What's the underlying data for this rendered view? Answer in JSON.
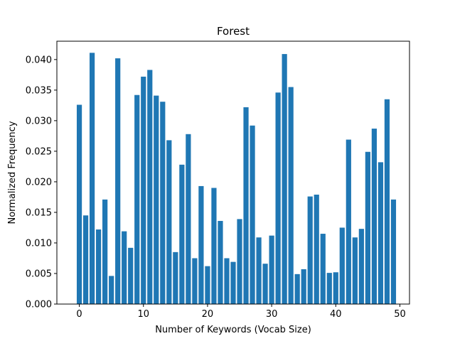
{
  "chart_data": {
    "type": "bar",
    "title": "Forest",
    "xlabel": "Number of Keywords (Vocab Size)",
    "ylabel": "Normalized Frequency",
    "xlim": [
      -3.5,
      51.5
    ],
    "ylim": [
      0,
      0.043
    ],
    "xticks": [
      0,
      10,
      20,
      30,
      40,
      50
    ],
    "yticks": [
      0.0,
      0.005,
      0.01,
      0.015,
      0.02,
      0.025,
      0.03,
      0.035,
      0.04
    ],
    "grid": false,
    "bar_color": "#1f77b4",
    "x": [
      0,
      1,
      2,
      3,
      4,
      5,
      6,
      7,
      8,
      9,
      10,
      11,
      12,
      13,
      14,
      15,
      16,
      17,
      18,
      19,
      20,
      21,
      22,
      23,
      24,
      25,
      26,
      27,
      28,
      29,
      30,
      31,
      32,
      33,
      34,
      35,
      36,
      37,
      38,
      39,
      40,
      41,
      42,
      43,
      44,
      45,
      46,
      47,
      48,
      49
    ],
    "values": [
      0.0326,
      0.0145,
      0.0411,
      0.0122,
      0.0171,
      0.0046,
      0.0402,
      0.0119,
      0.0092,
      0.0342,
      0.0372,
      0.0383,
      0.0341,
      0.0331,
      0.0268,
      0.0085,
      0.0228,
      0.0278,
      0.0075,
      0.0193,
      0.0062,
      0.019,
      0.0136,
      0.0075,
      0.0069,
      0.0139,
      0.0322,
      0.0292,
      0.0109,
      0.0066,
      0.0112,
      0.0346,
      0.0409,
      0.0355,
      0.0049,
      0.0057,
      0.0176,
      0.0179,
      0.0115,
      0.0051,
      0.0052,
      0.0125,
      0.0269,
      0.0109,
      0.0123,
      0.0249,
      0.0287,
      0.0232,
      0.0335,
      0.0171
    ]
  }
}
